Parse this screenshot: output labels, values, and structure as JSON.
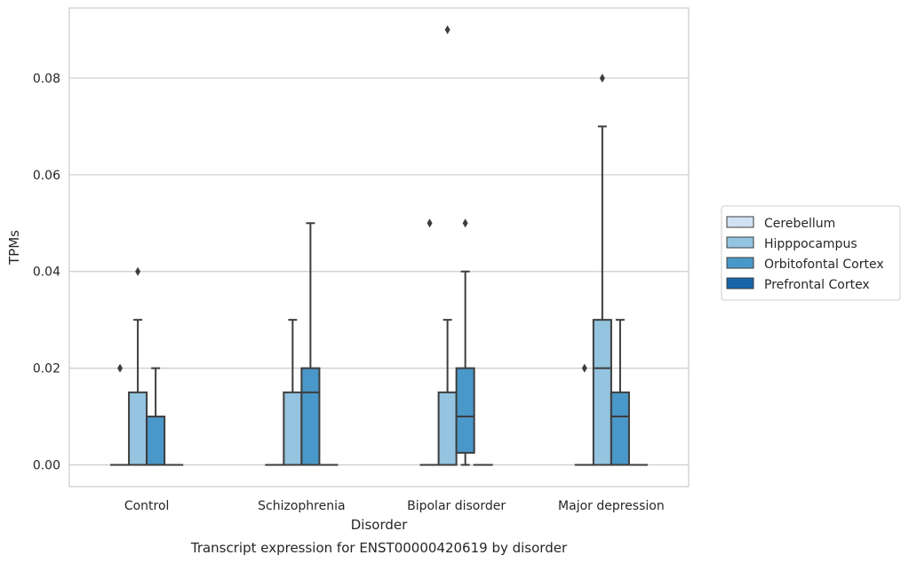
{
  "chart_data": {
    "type": "box",
    "title": "Transcript expression for ENST00000420619 by disorder",
    "xlabel": "Disorder",
    "ylabel": "TPMs",
    "ylim": [
      -0.0045,
      0.0945
    ],
    "yticks": [
      {
        "value": 0.0,
        "label": "0.00"
      },
      {
        "value": 0.02,
        "label": "0.02"
      },
      {
        "value": 0.04,
        "label": "0.04"
      },
      {
        "value": 0.06,
        "label": "0.06"
      },
      {
        "value": 0.08,
        "label": "0.08"
      }
    ],
    "grid": true,
    "legend_position": "right",
    "categories": [
      "Control",
      "Schizophrenia",
      "Bipolar disorder",
      "Major depression"
    ],
    "series": [
      {
        "name": "Cerebellum",
        "color": "#d0e1f2",
        "boxes": [
          {
            "q1": 0,
            "median": 0,
            "q3": 0,
            "whislo": 0,
            "whishi": 0,
            "fliers": []
          },
          {
            "q1": 0,
            "median": 0,
            "q3": 0,
            "whislo": 0,
            "whishi": 0,
            "fliers": []
          },
          {
            "q1": 0,
            "median": 0,
            "q3": 0,
            "whislo": 0,
            "whishi": 0,
            "fliers": []
          },
          {
            "q1": 0,
            "median": 0,
            "q3": 0,
            "whislo": 0,
            "whishi": 0,
            "fliers": []
          }
        ]
      },
      {
        "name": "Hipppocampus",
        "color": "#94c4df",
        "boxes": [
          {
            "q1": 0,
            "median": 0,
            "q3": 0.015,
            "whislo": 0,
            "whishi": 0.03,
            "fliers": [
              0.04
            ]
          },
          {
            "q1": 0,
            "median": 0,
            "q3": 0.015,
            "whislo": 0,
            "whishi": 0.03,
            "fliers": []
          },
          {
            "q1": 0,
            "median": 0,
            "q3": 0.015,
            "whislo": 0,
            "whishi": 0.03,
            "fliers": [
              0.09
            ]
          },
          {
            "q1": 0,
            "median": 0.02,
            "q3": 0.03,
            "whislo": 0,
            "whishi": 0.07,
            "fliers": [
              0.08
            ]
          }
        ]
      },
      {
        "name": "Orbitofontal Cortex",
        "color": "#4a98c9",
        "boxes": [
          {
            "q1": 0,
            "median": 0,
            "q3": 0.01,
            "whislo": 0,
            "whishi": 0.02,
            "fliers": []
          },
          {
            "q1": 0,
            "median": 0.015,
            "q3": 0.02,
            "whislo": 0,
            "whishi": 0.05,
            "fliers": []
          },
          {
            "q1": 0.0025,
            "median": 0.01,
            "q3": 0.02,
            "whislo": 0,
            "whishi": 0.04,
            "fliers": [
              0.05
            ]
          },
          {
            "q1": 0,
            "median": 0.01,
            "q3": 0.015,
            "whislo": 0,
            "whishi": 0.03,
            "fliers": []
          }
        ]
      },
      {
        "name": "Prefrontal Cortex",
        "color": "#1764ab",
        "boxes": [
          {
            "q1": 0,
            "median": 0,
            "q3": 0,
            "whislo": 0,
            "whishi": 0,
            "fliers": []
          },
          {
            "q1": 0,
            "median": 0,
            "q3": 0,
            "whislo": 0,
            "whishi": 0,
            "fliers": []
          },
          {
            "q1": 0,
            "median": 0,
            "q3": 0,
            "whislo": 0,
            "whishi": 0,
            "fliers": []
          },
          {
            "q1": 0,
            "median": 0,
            "q3": 0,
            "whislo": 0,
            "whishi": 0,
            "fliers": []
          }
        ]
      }
    ],
    "extra_fliers": [
      {
        "category": 0,
        "side": "left",
        "value": 0.02
      },
      {
        "category": 2,
        "side": "left",
        "value": 0.05
      },
      {
        "category": 3,
        "side": "left",
        "value": 0.02
      }
    ]
  }
}
